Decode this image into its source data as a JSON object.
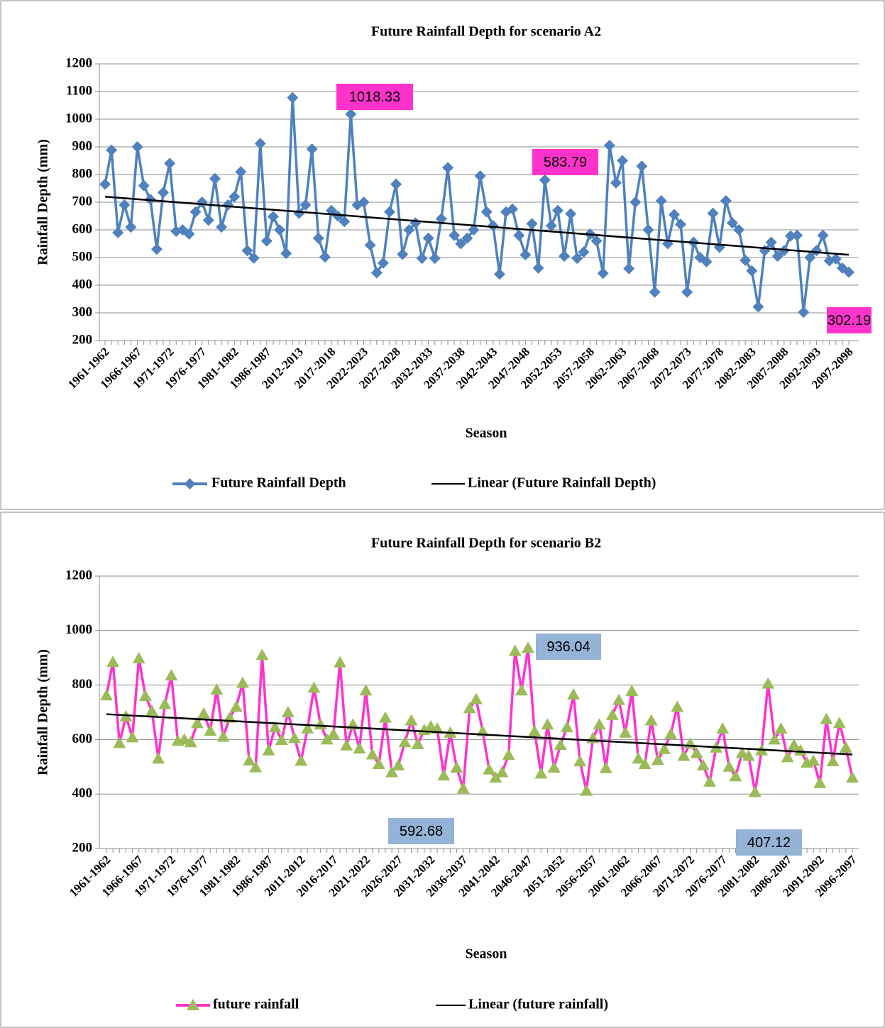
{
  "chart_data": [
    {
      "type": "line",
      "title": "Future Rainfall Depth for scenario A2",
      "x_label": "Season",
      "y_label": "Rainfall Depth (mm)",
      "categories": [
        "1961-1962",
        null,
        null,
        null,
        null,
        "1966-1967",
        null,
        null,
        null,
        null,
        "1971-1972",
        null,
        null,
        null,
        null,
        "1976-1977",
        null,
        null,
        null,
        null,
        "1981-1982",
        null,
        null,
        null,
        null,
        "1986-1987",
        null,
        null,
        null,
        null,
        "2012-2013",
        null,
        null,
        null,
        null,
        "2017-2018",
        null,
        null,
        null,
        null,
        "2022-2023",
        null,
        null,
        null,
        null,
        "2027-2028",
        null,
        null,
        null,
        null,
        "2032-2033",
        null,
        null,
        null,
        null,
        "2037-2038",
        null,
        null,
        null,
        null,
        "2042-2043",
        null,
        null,
        null,
        null,
        "2047-2048",
        null,
        null,
        null,
        null,
        "2052-2053",
        null,
        null,
        null,
        null,
        "2057-2058",
        null,
        null,
        null,
        null,
        "2062-2063",
        null,
        null,
        null,
        null,
        "2067-2068",
        null,
        null,
        null,
        null,
        "2072-2073",
        null,
        null,
        null,
        null,
        "2077-2078",
        null,
        null,
        null,
        null,
        "2082-2083",
        null,
        null,
        null,
        null,
        "2087-2088",
        null,
        null,
        null,
        null,
        "2092-2093",
        null,
        null,
        null,
        null,
        "2097-2098"
      ],
      "series": [
        {
          "name": "Future Rainfall Depth",
          "color": "#4f81bd",
          "marker": "diamond",
          "marker_color": "#4f81bd",
          "values": [
            765,
            888,
            590,
            690,
            610,
            900,
            760,
            710,
            530,
            735,
            840,
            595,
            600,
            585,
            665,
            700,
            635,
            785,
            610,
            690,
            720,
            810,
            525,
            498,
            912,
            560,
            648,
            600,
            515,
            1078,
            660,
            690,
            892,
            570,
            502,
            670,
            650,
            630,
            1018.33,
            690,
            700,
            545,
            445,
            480,
            665,
            765,
            512,
            600,
            625,
            497,
            570,
            497,
            640,
            825,
            580,
            550,
            570,
            600,
            795,
            665,
            615,
            440,
            665,
            675,
            580,
            510,
            622,
            462,
            780,
            615,
            670,
            505,
            658,
            497,
            520,
            585,
            560,
            443,
            905,
            770,
            850,
            460,
            700,
            830,
            600,
            375,
            705,
            550,
            655,
            620,
            375,
            555,
            500,
            485,
            660,
            537,
            705,
            625,
            600,
            490,
            452,
            322,
            525,
            555,
            505,
            525,
            578,
            580,
            302.19,
            500,
            525,
            580,
            488,
            495,
            462,
            447
          ]
        }
      ],
      "trend": {
        "name": "Linear (Future Rainfall Depth)",
        "color": "#000000",
        "start": 720,
        "end": 510
      },
      "annotations": [
        "1018.33",
        "583.79",
        "302.19"
      ],
      "annotation_color": "#ff33cc",
      "ylim": [
        200,
        1200
      ],
      "yticks": [
        200,
        300,
        400,
        500,
        600,
        700,
        800,
        900,
        1000,
        1100,
        1200
      ],
      "grid": true
    },
    {
      "type": "line",
      "title": "Future Rainfall Depth for scenario B2",
      "x_label": "Season",
      "y_label": "Rainfall Depth (mm)",
      "categories": [
        "1961-1962",
        null,
        null,
        null,
        null,
        "1966-1967",
        null,
        null,
        null,
        null,
        "1971-1972",
        null,
        null,
        null,
        null,
        "1976-1977",
        null,
        null,
        null,
        null,
        "1981-1982",
        null,
        null,
        null,
        null,
        "1986-1987",
        null,
        null,
        null,
        null,
        "2011-2012",
        null,
        null,
        null,
        null,
        "2016-2017",
        null,
        null,
        null,
        null,
        "2021-2022",
        null,
        null,
        null,
        null,
        "2026-2027",
        null,
        null,
        null,
        null,
        "2031-2032",
        null,
        null,
        null,
        null,
        "2036-2037",
        null,
        null,
        null,
        null,
        "2041-2042",
        null,
        null,
        null,
        null,
        "2046-2047",
        null,
        null,
        null,
        null,
        "2051-2052",
        null,
        null,
        null,
        null,
        "2056-2057",
        null,
        null,
        null,
        null,
        "2061-2062",
        null,
        null,
        null,
        null,
        "2066-2067",
        null,
        null,
        null,
        null,
        "2071-2072",
        null,
        null,
        null,
        null,
        "2076-2077",
        null,
        null,
        null,
        null,
        "2081-2082",
        null,
        null,
        null,
        null,
        "2086-2087",
        null,
        null,
        null,
        null,
        "2091-2092",
        null,
        null,
        null,
        null,
        "2096-2097"
      ],
      "series": [
        {
          "name": "future rainfall",
          "color": "#ff33cc",
          "marker": "triangle",
          "marker_color": "#9bbb59",
          "values": [
            762,
            885,
            587,
            685,
            608,
            898,
            760,
            705,
            530,
            730,
            835,
            595,
            600,
            590,
            660,
            695,
            632,
            783,
            610,
            680,
            720,
            808,
            523,
            498,
            910,
            560,
            645,
            598,
            700,
            605,
            522,
            640,
            790,
            655,
            600,
            620,
            883,
            578,
            655,
            567,
            780,
            545,
            510,
            680,
            480,
            505,
            590,
            670,
            583,
            635,
            648,
            640,
            468,
            625,
            497,
            420,
            715,
            748,
            630,
            490,
            460,
            480,
            543,
            925,
            780,
            936.04,
            630,
            475,
            655,
            497,
            580,
            645,
            765,
            520,
            412,
            605,
            655,
            495,
            690,
            745,
            625,
            778,
            530,
            510,
            670,
            525,
            565,
            620,
            720,
            540,
            585,
            550,
            505,
            445,
            570,
            640,
            500,
            465,
            550,
            540,
            407.12,
            560,
            805,
            600,
            640,
            535,
            580,
            560,
            515,
            522,
            440,
            675,
            520,
            660,
            570,
            460
          ]
        }
      ],
      "trend": {
        "name": "Linear (future rainfall)",
        "color": "#000000",
        "start": 693,
        "end": 545
      },
      "annotations": [
        "936.04",
        "592.68",
        "407.12"
      ],
      "annotation_color": "#95b3d7",
      "ylim": [
        200,
        1200
      ],
      "yticks": [
        200,
        400,
        600,
        800,
        1000,
        1200
      ],
      "grid": true
    }
  ]
}
